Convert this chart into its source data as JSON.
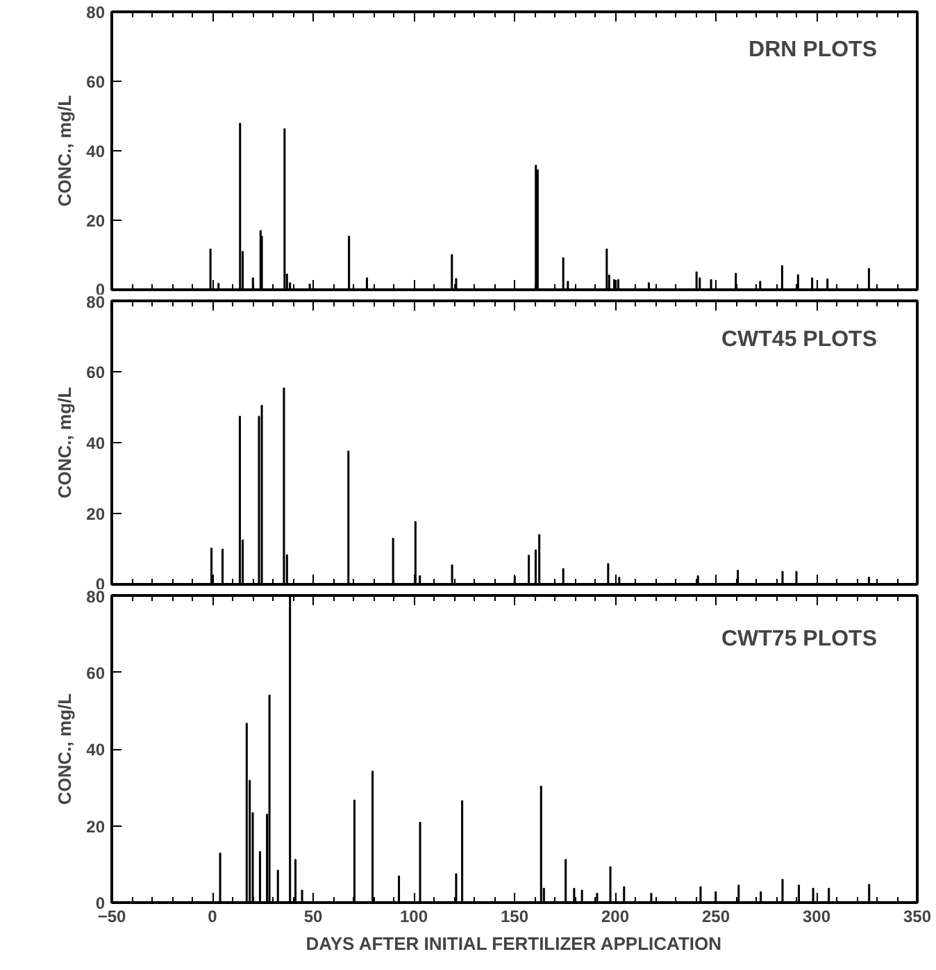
{
  "chart_data": [
    {
      "type": "bar",
      "title": "DRN PLOTS",
      "ylabel": "CONC., mg/L",
      "xlim": [
        -50,
        350
      ],
      "xticks": [
        -50,
        0,
        50,
        100,
        150,
        200,
        250,
        300,
        350
      ],
      "ylim": [
        0,
        80
      ],
      "yticks": [
        0,
        20,
        40,
        60,
        80
      ],
      "tick_labels": "y",
      "grid": false,
      "color": "#000000",
      "x": [
        -1,
        3,
        13.7,
        15,
        20.1,
        23.9,
        24.5,
        35.8,
        37,
        38.5,
        48.3,
        67.8,
        76.7,
        118.9,
        121,
        160.6,
        161.5,
        174.2,
        176.5,
        195.8,
        197,
        199.5,
        201.5,
        216.7,
        240.4,
        242,
        247.6,
        259.9,
        272,
        282.9,
        290.8,
        297.8,
        305.4,
        326
      ],
      "values": [
        11.7,
        1.8,
        47.9,
        11,
        3.4,
        17,
        15.4,
        46.3,
        4.5,
        2,
        1.6,
        15.4,
        3.4,
        10.1,
        3.2,
        35.8,
        34.5,
        9.2,
        2.4,
        11.7,
        4.2,
        2.9,
        2.9,
        2,
        5.1,
        3.4,
        2.9,
        4.7,
        2.4,
        6.9,
        4.3,
        3.4,
        3.1,
        6.1
      ]
    },
    {
      "type": "bar",
      "title": "CWT45 PLOTS",
      "ylabel": "CONC., mg/L",
      "xlim": [
        -50,
        350
      ],
      "xticks": [
        -50,
        0,
        50,
        100,
        150,
        200,
        250,
        300,
        350
      ],
      "ylim": [
        0,
        80
      ],
      "yticks": [
        0,
        20,
        40,
        60,
        80
      ],
      "tick_labels": "y",
      "grid": false,
      "color": "#000000",
      "x": [
        -0.5,
        5,
        13.6,
        15,
        23.1,
        24.5,
        35.5,
        37,
        67.5,
        89.7,
        100.8,
        103,
        119,
        150.1,
        157.1,
        160.5,
        162.3,
        174.2,
        196.5,
        202,
        241.1,
        260.9,
        283.1,
        290,
        326
      ],
      "values": [
        10.2,
        9.9,
        47.4,
        12.5,
        47.4,
        50.5,
        55.4,
        8.3,
        37.6,
        13,
        17.7,
        2.4,
        5.5,
        2.2,
        8.2,
        9.7,
        14,
        4.4,
        5.8,
        2,
        2.4,
        3.9,
        3.6,
        3.6,
        2
      ]
    },
    {
      "type": "bar",
      "title": "CWT75 PLOTS",
      "ylabel": "CONC., mg/L",
      "xlabel": "DAYS AFTER INITIAL FERTILIZER APPLICATION",
      "xlim": [
        -50,
        350
      ],
      "xticks": [
        -50,
        0,
        50,
        100,
        150,
        200,
        250,
        300,
        350
      ],
      "ylim": [
        0,
        80
      ],
      "yticks": [
        0,
        20,
        40,
        60,
        80
      ],
      "grid": false,
      "color": "#000000",
      "x": [
        3.8,
        17,
        18.5,
        20,
        23.6,
        27.1,
        28.3,
        32.5,
        38.5,
        41.2,
        44.5,
        70.5,
        79.5,
        92.6,
        103.1,
        121,
        124,
        163.2,
        164.6,
        175.4,
        179.6,
        183.5,
        191,
        197.6,
        204.4,
        217.9,
        242.4,
        249.9,
        261.3,
        272.3,
        283.1,
        291.2,
        298.3,
        306.1,
        326.1
      ],
      "values": [
        12.9,
        46.7,
        31.8,
        23.4,
        13.3,
        23,
        54,
        8.4,
        80,
        11.2,
        3.2,
        26.7,
        34.2,
        6.9,
        20.9,
        7.5,
        26.5,
        30.3,
        3.7,
        11.2,
        3.7,
        3.2,
        2.4,
        9.3,
        4.1,
        2.4,
        4.1,
        2.8,
        4.5,
        2.8,
        6,
        4.5,
        3.7,
        3.7,
        4.7
      ]
    }
  ]
}
